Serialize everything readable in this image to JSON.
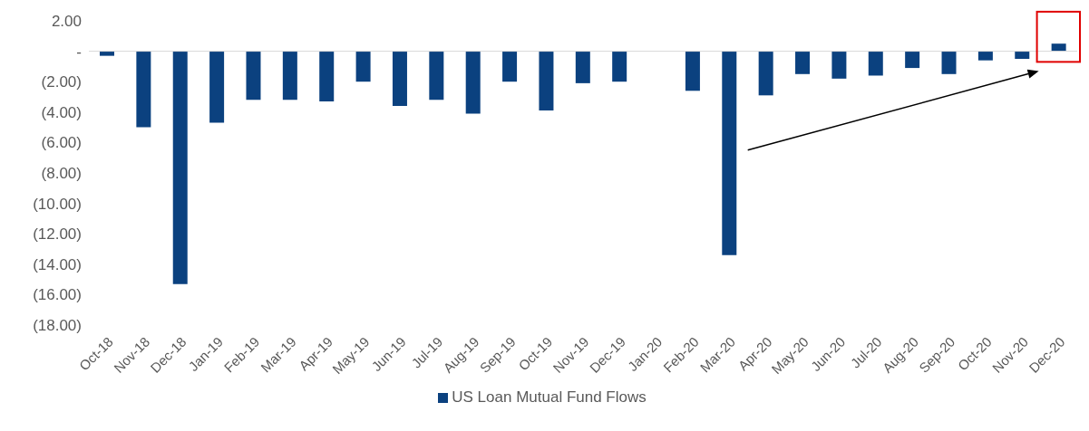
{
  "chart_data": {
    "type": "bar",
    "categories": [
      "Oct-18",
      "Nov-18",
      "Dec-18",
      "Jan-19",
      "Feb-19",
      "Mar-19",
      "Apr-19",
      "May-19",
      "Jun-19",
      "Jul-19",
      "Aug-19",
      "Sep-19",
      "Oct-19",
      "Nov-19",
      "Dec-19",
      "Jan-20",
      "Feb-20",
      "Mar-20",
      "Apr-20",
      "May-20",
      "Jun-20",
      "Jul-20",
      "Aug-20",
      "Sep-20",
      "Oct-20",
      "Nov-20",
      "Dec-20"
    ],
    "series": [
      {
        "name": "US Loan Mutual Fund Flows",
        "color": "#0b417f",
        "values": [
          -0.3,
          -5.0,
          -15.3,
          -4.7,
          -3.2,
          -3.2,
          -3.3,
          -2.0,
          -3.6,
          -3.2,
          -4.1,
          -2.0,
          -3.9,
          -2.1,
          -2.0,
          0,
          -2.6,
          -13.4,
          -2.9,
          -1.5,
          -1.8,
          -1.6,
          -1.1,
          -1.5,
          -0.6,
          -0.5,
          0.5
        ]
      }
    ],
    "ylim": [
      -18,
      2
    ],
    "yticks": [
      {
        "value": 2,
        "label": "2.00"
      },
      {
        "value": 0,
        "label": "-"
      },
      {
        "value": -2,
        "label": "(2.00)"
      },
      {
        "value": -4,
        "label": "(4.00)"
      },
      {
        "value": -6,
        "label": "(6.00)"
      },
      {
        "value": -8,
        "label": "(8.00)"
      },
      {
        "value": -10,
        "label": "(10.00)"
      },
      {
        "value": -12,
        "label": "(12.00)"
      },
      {
        "value": -14,
        "label": "(14.00)"
      },
      {
        "value": -16,
        "label": "(16.00)"
      },
      {
        "value": -18,
        "label": "(18.00)"
      }
    ],
    "ref_lines": [
      {
        "axis": "y",
        "value": 0,
        "color": "#d9d9d9"
      }
    ],
    "grid": false,
    "legend": "bottom"
  }
}
